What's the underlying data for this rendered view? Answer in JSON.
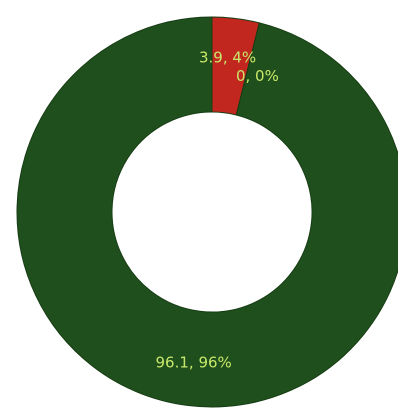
{
  "chart_data": {
    "type": "pie",
    "donut": true,
    "slices": [
      {
        "value": 3.9,
        "percent_label": "4%",
        "label": "3.9, 4%",
        "color": "#c1271f"
      },
      {
        "value": 0,
        "percent_label": "0%",
        "label": "0, 0%",
        "color": "#2f8a3a"
      },
      {
        "value": 96.1,
        "percent_label": "96%",
        "label": "96.1, 96%",
        "color": "#1f4f1c"
      }
    ],
    "label_color": "#c8e86a",
    "background": "#ffffff",
    "legend": "none"
  }
}
